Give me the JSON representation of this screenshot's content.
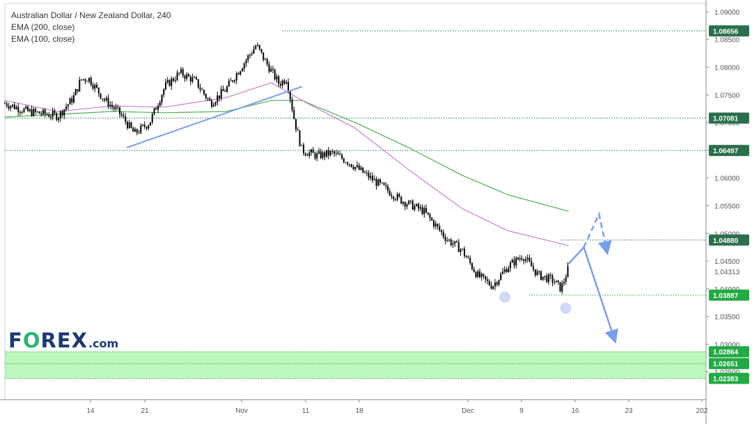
{
  "chart_data": {
    "type": "candlestick",
    "title": "Australian Dollar / New Zealand Dollar, 240",
    "indicators": [
      {
        "name": "EMA (200, close)",
        "color": "#4caf50"
      },
      {
        "name": "EMA (100, close)",
        "color": "#c77dcc"
      }
    ],
    "y_ticks": [
      "1.09000",
      "1.08500",
      "1.08000",
      "1.07500",
      "1.07000",
      "1.06500",
      "1.06000",
      "1.05500",
      "1.05000",
      "1.04500",
      "1.04000",
      "1.03500",
      "1.03000",
      "1.02500"
    ],
    "x_ticks": [
      "14",
      "21",
      "Nov",
      "11",
      "18",
      "Dec",
      "9",
      "16",
      "23",
      "202"
    ],
    "ylim": [
      1.02,
      1.0915
    ],
    "grid": false,
    "price_lines": [
      {
        "value": 1.08656,
        "label": "1.08656",
        "color": "#2b6f4c"
      },
      {
        "value": 1.07081,
        "label": "1.07081",
        "color": "#2b6f4c"
      },
      {
        "value": 1.06497,
        "label": "1.06497",
        "color": "#2b6f4c"
      },
      {
        "value": 1.0488,
        "label": "1.04880",
        "color": "#2b6f4c"
      },
      {
        "value": 1.03887,
        "label": "1.03887",
        "color": "#22aa44"
      },
      {
        "value": 1.02864,
        "label": "1.02864",
        "color": "#22aa44"
      },
      {
        "value": 1.02651,
        "label": "1.02651",
        "color": "#22aa44"
      },
      {
        "value": 1.02383,
        "label": "1.02383",
        "color": "#22aa44"
      }
    ],
    "current_price": "1.04313",
    "support_zone": [
      1.02383,
      1.02864
    ],
    "price_path": [
      [
        "Oct 7",
        1.0735
      ],
      [
        "Oct 10",
        1.072
      ],
      [
        "Oct 14",
        1.0712
      ],
      [
        "Oct 16",
        1.0745
      ],
      [
        "Oct 17",
        1.0778
      ],
      [
        "Oct 18",
        1.078
      ],
      [
        "Oct 20",
        1.0742
      ],
      [
        "Oct 22",
        1.0718
      ],
      [
        "Oct 24",
        1.068
      ],
      [
        "Oct 26",
        1.07
      ],
      [
        "Oct 28",
        1.0765
      ],
      [
        "Oct 30",
        1.079
      ],
      [
        "Nov 1",
        1.0775
      ],
      [
        "Nov 3",
        1.0735
      ],
      [
        "Nov 5",
        1.076
      ],
      [
        "Nov 7",
        1.08
      ],
      [
        "Nov 9",
        1.084
      ],
      [
        "Nov 10",
        1.0815
      ],
      [
        "Nov 12",
        1.077
      ],
      [
        "Nov 13",
        1.078
      ],
      [
        "Nov 14",
        1.0705
      ],
      [
        "Nov 15",
        1.065
      ],
      [
        "Nov 17",
        1.064
      ],
      [
        "Nov 19",
        1.0645
      ],
      [
        "Nov 21",
        1.063
      ],
      [
        "Nov 24",
        1.06
      ],
      [
        "Nov 28",
        1.056
      ],
      [
        "Dec 1",
        1.054
      ],
      [
        "Dec 4",
        1.049
      ],
      [
        "Dec 6",
        1.047
      ],
      [
        "Dec 8",
        1.0425
      ],
      [
        "Dec 10",
        1.0405
      ],
      [
        "Dec 12",
        1.044
      ],
      [
        "Dec 14",
        1.046
      ],
      [
        "Dec 16",
        1.0425
      ],
      [
        "Dec 18",
        1.0415
      ],
      [
        "Dec 19",
        1.04
      ],
      [
        "Dec 20",
        1.0438
      ]
    ],
    "ema200_path": [
      [
        "Oct 7",
        1.071
      ],
      [
        "Oct 21",
        1.072
      ],
      [
        "Oct 28",
        1.0718
      ],
      [
        "Nov 5",
        1.072
      ],
      [
        "Nov 11",
        1.074
      ],
      [
        "Nov 15",
        1.074
      ],
      [
        "Nov 22",
        1.07
      ],
      [
        "Nov 29",
        1.0655
      ],
      [
        "Dec 6",
        1.0605
      ],
      [
        "Dec 12",
        1.057
      ],
      [
        "Dec 20",
        1.054
      ]
    ],
    "ema100_path": [
      [
        "Oct 7",
        1.074
      ],
      [
        "Oct 14",
        1.072
      ],
      [
        "Oct 21",
        1.073
      ],
      [
        "Oct 28",
        1.0728
      ],
      [
        "Nov 5",
        1.0745
      ],
      [
        "Nov 11",
        1.0772
      ],
      [
        "Nov 15",
        1.074
      ],
      [
        "Nov 22",
        1.069
      ],
      [
        "Nov 29",
        1.0615
      ],
      [
        "Dec 6",
        1.0545
      ],
      [
        "Dec 12",
        1.0505
      ],
      [
        "Dec 20",
        1.0478
      ]
    ],
    "trendline": [
      [
        "Oct 23",
        1.0655
      ],
      [
        "Nov 15",
        1.0765
      ]
    ],
    "swing_lows": [
      [
        "Dec 12",
        1.0385
      ],
      [
        "Dec 20",
        1.0365
      ]
    ],
    "scenario_bullish": [
      [
        "Dec 20",
        1.0445
      ],
      [
        "Dec 22",
        1.0475
      ],
      [
        "Dec 24",
        1.0535
      ],
      [
        "Dec 25",
        1.047
      ]
    ],
    "scenario_bearish": [
      [
        "Dec 22",
        1.0475
      ],
      [
        "Dec 26",
        1.031
      ]
    ]
  },
  "branding": {
    "logo_text": "FOREX",
    "logo_tld": ".com"
  },
  "colors": {
    "candle": "#000000",
    "trendline": "#7a9ee8",
    "zone": "#99f299",
    "badge_dark": "#2b6f4c",
    "badge_green": "#22aa44"
  }
}
